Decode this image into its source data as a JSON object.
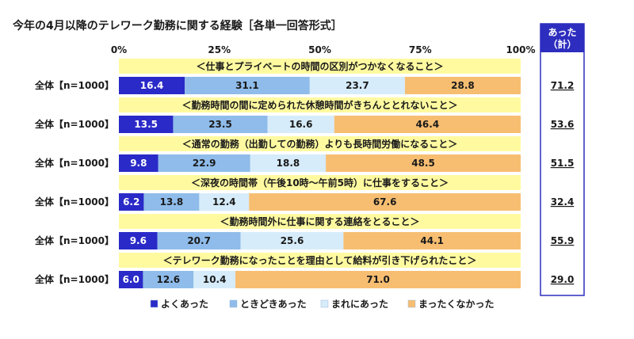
{
  "title": "今年の4月以降のテレワーク勤務に関する経験［各単一回答形式］",
  "totals_header": [
    "あった",
    "（計）"
  ],
  "chart_data": {
    "type": "bar",
    "stacked": "100%",
    "orientation": "horizontal",
    "x_ticks": [
      "0%",
      "25%",
      "50%",
      "75%",
      "100%"
    ],
    "xlim": [
      0,
      100
    ],
    "legend_position": "bottom",
    "series": [
      {
        "name": "よくあった",
        "color": "#2a2ac8",
        "text_color": "#ffffff"
      },
      {
        "name": "ときどきあった",
        "color": "#8fbcea",
        "text_color": "#1a1a1a"
      },
      {
        "name": "まれにあった",
        "color": "#d6ecfa",
        "text_color": "#1a1a1a"
      },
      {
        "name": "まったくなかった",
        "color": "#f7be72",
        "text_color": "#1a1a1a"
      }
    ],
    "groups": [
      {
        "question": "＜仕事とプライベートの時間の区別がつかなくなること＞",
        "row_label": "全体【n=1000】",
        "values": [
          16.4,
          31.1,
          23.7,
          28.8
        ],
        "total": "71.2"
      },
      {
        "question": "＜勤務時間の間に定められた休憩時間がきちんととれないこと＞",
        "row_label": "全体【n=1000】",
        "values": [
          13.5,
          23.5,
          16.6,
          46.4
        ],
        "total": "53.6"
      },
      {
        "question": "＜通常の勤務（出勤しての勤務）よりも長時間労働になること＞",
        "row_label": "全体【n=1000】",
        "values": [
          9.8,
          22.9,
          18.8,
          48.5
        ],
        "total": "51.5"
      },
      {
        "question": "＜深夜の時間帯（午後10時〜午前5時）に仕事をすること＞",
        "row_label": "全体【n=1000】",
        "values": [
          6.2,
          13.8,
          12.4,
          67.6
        ],
        "total": "32.4"
      },
      {
        "question": "＜勤務時間外に仕事に関する連絡をとること＞",
        "row_label": "全体【n=1000】",
        "values": [
          9.6,
          20.7,
          25.6,
          44.1
        ],
        "total": "55.9"
      },
      {
        "question": "＜テレワーク勤務になったことを理由として給料が引き下げられたこと＞",
        "row_label": "全体【n=1000】",
        "values": [
          6.0,
          12.6,
          10.4,
          71.0
        ],
        "total": "29.0"
      }
    ]
  }
}
